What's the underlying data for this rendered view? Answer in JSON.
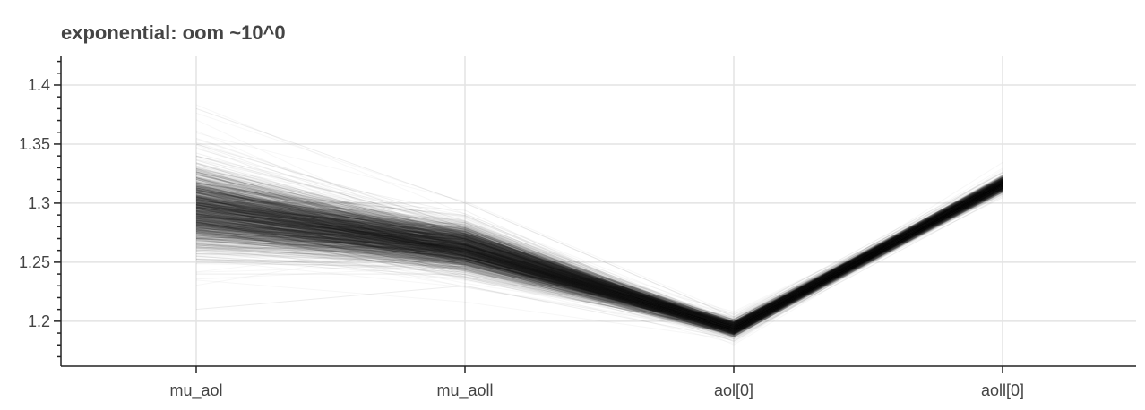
{
  "chart_data": {
    "type": "line",
    "title": "exponential: oom ~10^0",
    "xlabel": "",
    "ylabel": "",
    "categories": [
      "mu_aol",
      "mu_aoll",
      "aol[0]",
      "aoll[0]"
    ],
    "y_ticks": [
      1.2,
      1.25,
      1.3,
      1.35,
      1.4
    ],
    "y_tick_labels": [
      "1.2",
      "1.25",
      "1.3",
      "1.35",
      "1.4"
    ],
    "ylim": [
      1.162,
      1.425
    ],
    "grid": true,
    "legend": "none",
    "line_color": "#1a1a1a",
    "series_summary": {
      "description_of_bundle": "many overlapping low-opacity traces",
      "mean": [
        1.295,
        1.262,
        1.194,
        1.316
      ],
      "spread_core": [
        0.028,
        0.016,
        0.005,
        0.005
      ],
      "spread_outer": [
        0.055,
        0.024,
        0.01,
        0.008
      ]
    },
    "series": [
      {
        "values": [
          1.295,
          1.262,
          1.194,
          1.316
        ]
      },
      {
        "values": [
          1.34,
          1.28,
          1.198,
          1.32
        ]
      },
      {
        "values": [
          1.35,
          1.285,
          1.2,
          1.322
        ]
      },
      {
        "values": [
          1.25,
          1.245,
          1.19,
          1.311
        ]
      },
      {
        "values": [
          1.24,
          1.24,
          1.189,
          1.31
        ]
      },
      {
        "values": [
          1.38,
          1.3,
          1.204,
          1.326
        ]
      },
      {
        "values": [
          1.21,
          1.23,
          1.185,
          1.306
        ]
      },
      {
        "values": [
          1.32,
          1.27,
          1.196,
          1.318
        ]
      },
      {
        "values": [
          1.27,
          1.255,
          1.192,
          1.313
        ]
      },
      {
        "values": [
          1.3,
          1.265,
          1.195,
          1.316
        ]
      }
    ]
  }
}
